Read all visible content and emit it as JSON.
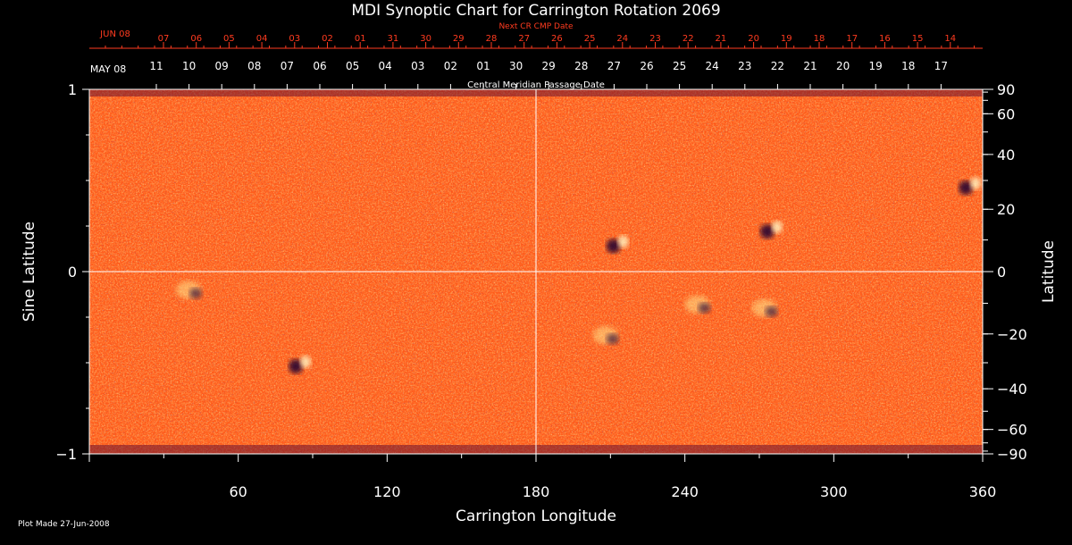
{
  "colors": {
    "background": "#000000",
    "axis": "#ffffff",
    "next_cr_axis": "#ff3b1f",
    "map_base": "#ff5a1a",
    "map_dark": "#3a0d3a",
    "map_bright": "#ffe38a"
  },
  "chart_data": {
    "type": "heatmap",
    "title": "MDI Synoptic Chart for Carrington Rotation 2069",
    "xlabel": "Carrington Longitude",
    "ylabel_left": "Sine Latitude",
    "ylabel_right": "Latitude",
    "x_range": [
      0,
      360
    ],
    "y_range": [
      -1,
      1
    ],
    "x_tick_labels": [
      "60",
      "120",
      "180",
      "240",
      "300",
      "360"
    ],
    "y_left_tick_labels": [
      "1",
      "0",
      "−1"
    ],
    "y_right_tick_labels": [
      "90",
      "60",
      "40",
      "20",
      "0",
      "−20",
      "−40",
      "−60",
      "−90"
    ],
    "y_right_ticks_deg": [
      90,
      60,
      40,
      20,
      0,
      -20,
      -40,
      -60,
      -90
    ],
    "grid": "center crosshair at longitude 180 and latitude 0",
    "cmp_axis": {
      "title": "Central Meridian Passage Date",
      "month_label": "MAY 08",
      "dates": [
        "11",
        "10",
        "09",
        "08",
        "07",
        "06",
        "05",
        "04",
        "03",
        "02",
        "01",
        "30",
        "29",
        "28",
        "27",
        "26",
        "25",
        "24",
        "23",
        "22",
        "21",
        "20",
        "19",
        "18",
        "17"
      ]
    },
    "next_cr_axis": {
      "title": "Next CR CMP Date",
      "month_label": "JUN 08",
      "dates": [
        "07",
        "06",
        "05",
        "04",
        "03",
        "02",
        "01",
        "31",
        "30",
        "29",
        "28",
        "27",
        "26",
        "25",
        "24",
        "23",
        "22",
        "21",
        "20",
        "19",
        "18",
        "17",
        "16",
        "15",
        "14"
      ]
    },
    "features": [
      {
        "type": "bipolar region",
        "lon": 213,
        "sinlat": 0.15
      },
      {
        "type": "bipolar region",
        "lon": 275,
        "sinlat": 0.23
      },
      {
        "type": "bipolar region",
        "lon": 355,
        "sinlat": 0.47
      },
      {
        "type": "plage",
        "lon": 245,
        "sinlat": -0.18
      },
      {
        "type": "plage",
        "lon": 272,
        "sinlat": -0.2
      },
      {
        "type": "plage",
        "lon": 208,
        "sinlat": -0.35
      },
      {
        "type": "bipolar region",
        "lon": 85,
        "sinlat": -0.51
      },
      {
        "type": "plage",
        "lon": 40,
        "sinlat": -0.1
      }
    ]
  },
  "footer": {
    "plot_made": "Plot Made 27-Jun-2008"
  }
}
